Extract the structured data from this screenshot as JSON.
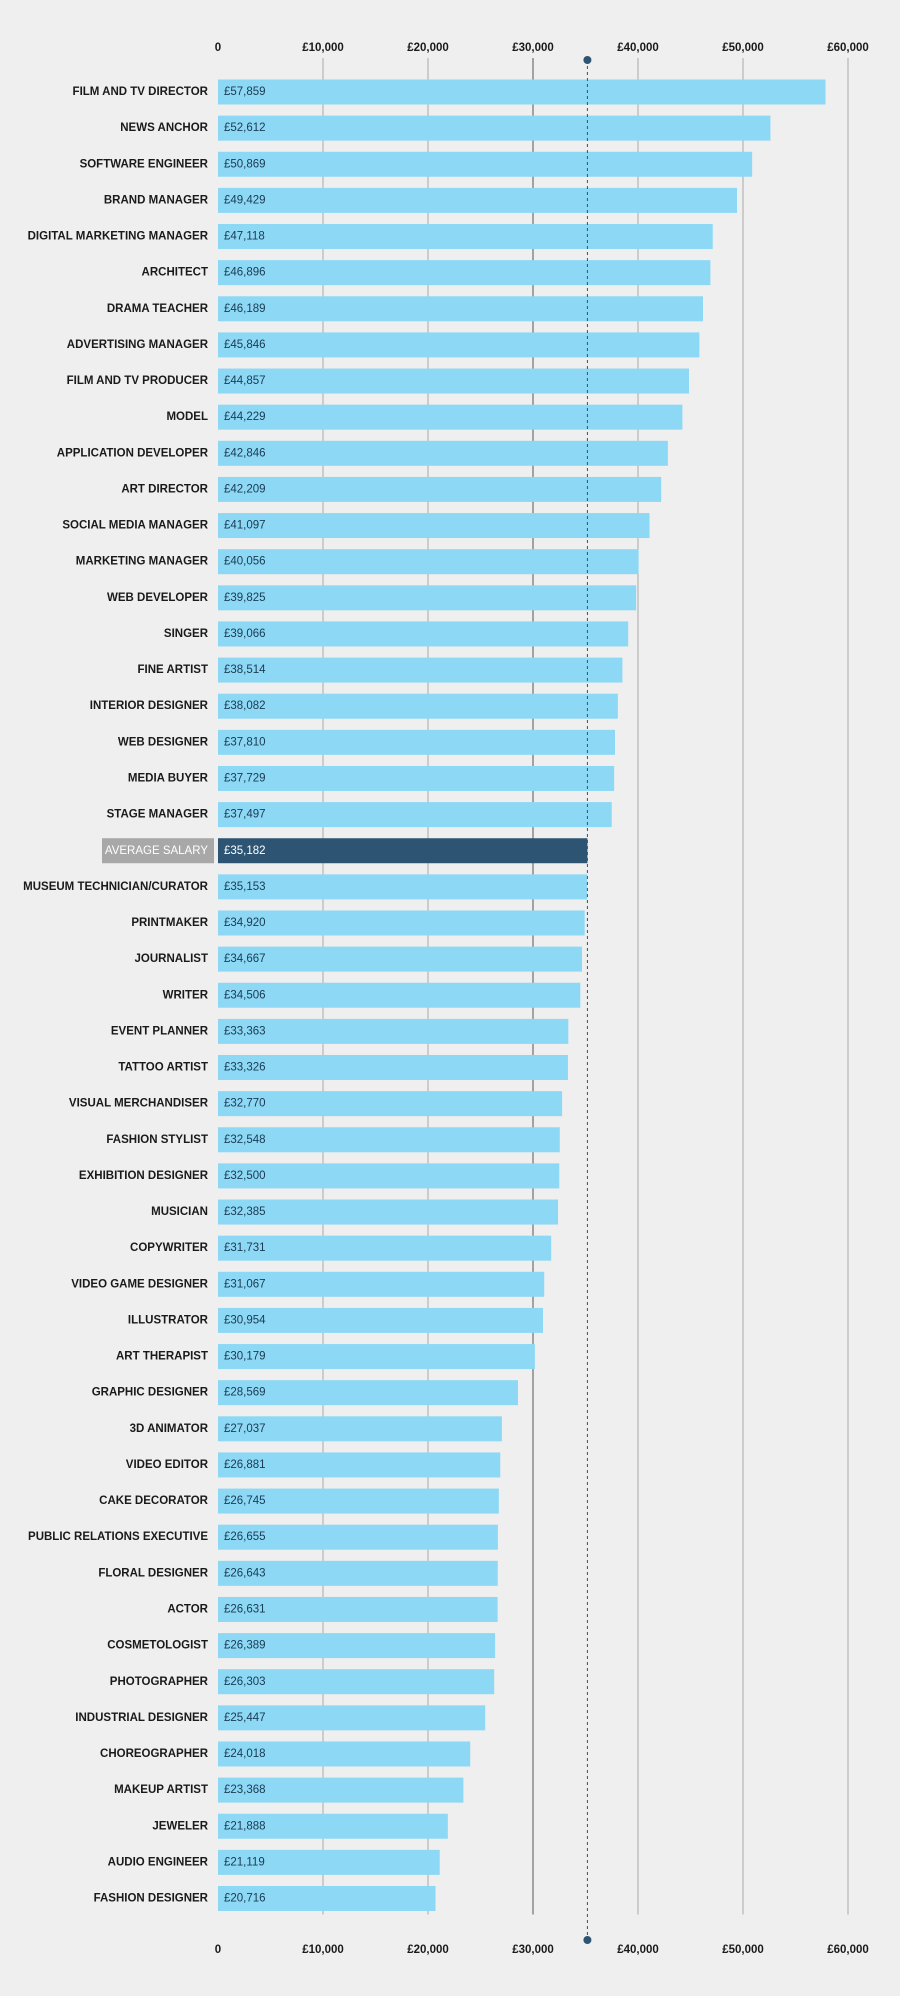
{
  "chart_data": {
    "type": "bar",
    "orientation": "horizontal",
    "categories": [
      "FILM AND TV DIRECTOR",
      "NEWS ANCHOR",
      "SOFTWARE ENGINEER",
      "BRAND MANAGER",
      "DIGITAL MARKETING MANAGER",
      "ARCHITECT",
      "DRAMA TEACHER",
      "ADVERTISING MANAGER",
      "FILM AND TV PRODUCER",
      "MODEL",
      "APPLICATION DEVELOPER",
      "ART DIRECTOR",
      "SOCIAL MEDIA MANAGER",
      "MARKETING MANAGER",
      "WEB DEVELOPER",
      "SINGER",
      "FINE ARTIST",
      "INTERIOR DESIGNER",
      "WEB DESIGNER",
      "MEDIA BUYER",
      "STAGE MANAGER",
      "AVERAGE SALARY",
      "MUSEUM TECHNICIAN/CURATOR",
      "PRINTMAKER",
      "JOURNALIST",
      "WRITER",
      "EVENT PLANNER",
      "TATTOO ARTIST",
      "VISUAL MERCHANDISER",
      "FASHION STYLIST",
      "EXHIBITION DESIGNER",
      "MUSICIAN",
      "COPYWRITER",
      "VIDEO GAME DESIGNER",
      "ILLUSTRATOR",
      "ART THERAPIST",
      "GRAPHIC DESIGNER",
      "3D ANIMATOR",
      "VIDEO EDITOR",
      "CAKE DECORATOR",
      "PUBLIC RELATIONS EXECUTIVE",
      "FLORAL DESIGNER",
      "ACTOR",
      "COSMETOLOGIST",
      "PHOTOGRAPHER",
      "INDUSTRIAL DESIGNER",
      "CHOREOGRAPHER",
      "MAKEUP ARTIST",
      "JEWELER",
      "AUDIO ENGINEER",
      "FASHION DESIGNER"
    ],
    "values": [
      57859,
      52612,
      50869,
      49429,
      47118,
      46896,
      46189,
      45846,
      44857,
      44229,
      42846,
      42209,
      41097,
      40056,
      39825,
      39066,
      38514,
      38082,
      37810,
      37729,
      37497,
      35182,
      35153,
      34920,
      34667,
      34506,
      33363,
      33326,
      32770,
      32548,
      32500,
      32385,
      31731,
      31067,
      30954,
      30179,
      28569,
      27037,
      26881,
      26745,
      26655,
      26643,
      26631,
      26389,
      26303,
      25447,
      24018,
      23368,
      21888,
      21119,
      20716
    ],
    "value_labels": [
      "£57,859",
      "£52,612",
      "£50,869",
      "£49,429",
      "£47,118",
      "£46,896",
      "£46,189",
      "£45,846",
      "£44,857",
      "£44,229",
      "£42,846",
      "£42,209",
      "£41,097",
      "£40,056",
      "£39,825",
      "£39,066",
      "£38,514",
      "£38,082",
      "£37,810",
      "£37,729",
      "£37,497",
      "£35,182",
      "£35,153",
      "£34,920",
      "£34,667",
      "£34,506",
      "£33,363",
      "£33,326",
      "£32,770",
      "£32,548",
      "£32,500",
      "£32,385",
      "£31,731",
      "£31,067",
      "£30,954",
      "£30,179",
      "£28,569",
      "£27,037",
      "£26,881",
      "£26,745",
      "£26,655",
      "£26,643",
      "£26,631",
      "£26,389",
      "£26,303",
      "£25,447",
      "£24,018",
      "£23,368",
      "£21,888",
      "£21,119",
      "£20,716"
    ],
    "color": "#8dd8f5",
    "highlight_index": 21,
    "highlight_color": "#2d5573",
    "xlim": [
      0,
      60000
    ],
    "xticks": [
      0,
      {
        "value": 10000,
        "label": "£10,000"
      },
      {
        "value": 20000,
        "label": "£20,000"
      },
      {
        "value": 30000,
        "label": "£30,000"
      },
      {
        "value": 40000,
        "label": "£40,000"
      },
      {
        "value": 50000,
        "label": "£50,000"
      },
      {
        "value": 60000,
        "label": "£60,000"
      }
    ],
    "grid": true
  }
}
